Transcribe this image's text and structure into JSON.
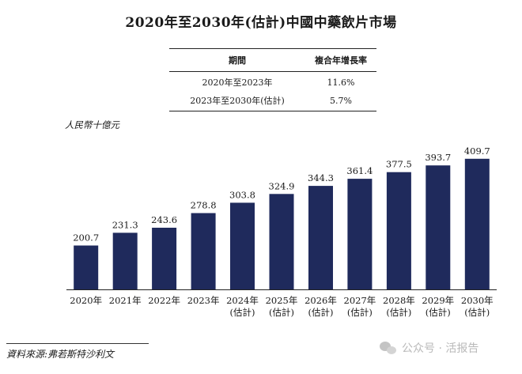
{
  "chart_data": {
    "type": "bar",
    "title": "2020年至2030年(估計)中國中藥飲片市場",
    "ylabel": "人民幣十億元",
    "xlabel": "",
    "categories": [
      [
        "2020年"
      ],
      [
        "2021年"
      ],
      [
        "2022年"
      ],
      [
        "2023年"
      ],
      [
        "2024年",
        "(估計)"
      ],
      [
        "2025年",
        "(估計)"
      ],
      [
        "2026年",
        "(估計)"
      ],
      [
        "2027年",
        "(估計)"
      ],
      [
        "2028年",
        "(估計)"
      ],
      [
        "2029年",
        "(估計)"
      ],
      [
        "2030年",
        "(估計)"
      ]
    ],
    "values": [
      200.7,
      231.3,
      243.6,
      278.8,
      303.8,
      324.9,
      344.3,
      361.4,
      377.5,
      393.7,
      409.7
    ],
    "value_labels": [
      "200.7",
      "231.3",
      "243.6",
      "278.8",
      "303.8",
      "324.9",
      "344.3",
      "361.4",
      "377.5",
      "393.7",
      "409.7"
    ],
    "ylim": [
      95,
      415
    ],
    "grid": false,
    "bar_color": "#1f2a5c"
  },
  "cagr_table": {
    "headers": [
      "期間",
      "複合年增長率"
    ],
    "rows": [
      [
        "2020年至2023年",
        "11.6%"
      ],
      [
        "2023年至2030年(估計)",
        "5.7%"
      ]
    ]
  },
  "source": "資料來源:弗若斯特沙利文",
  "watermark": "公众号 · 活报告"
}
